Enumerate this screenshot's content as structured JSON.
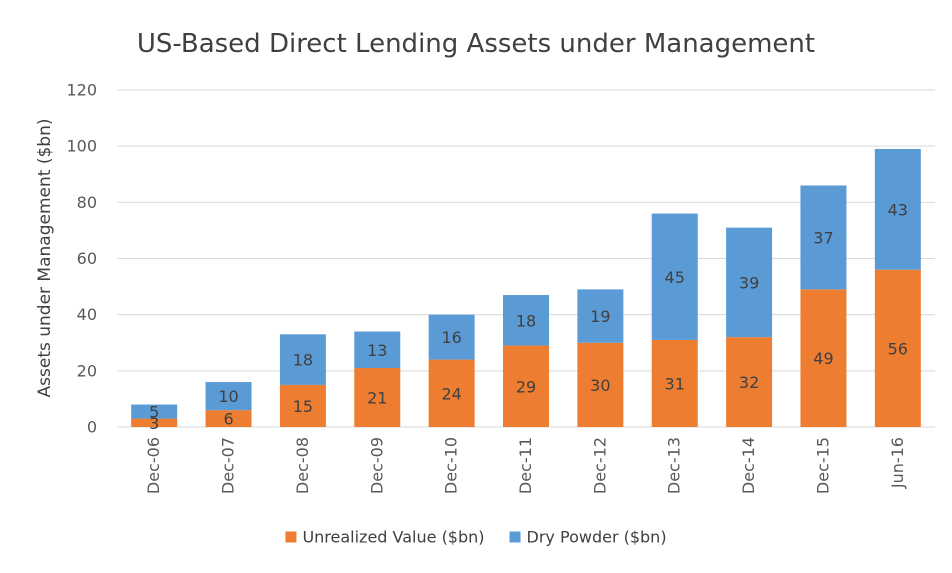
{
  "chart_data": {
    "type": "bar",
    "stacked": true,
    "title": "US-Based Direct Lending Assets under Management",
    "xlabel": "",
    "ylabel": "Assets under Management ($bn)",
    "ylim": [
      0,
      120
    ],
    "yticks": [
      0,
      20,
      40,
      60,
      80,
      100,
      120
    ],
    "grid": true,
    "legend_position": "bottom",
    "categories": [
      "Dec-06",
      "Dec-07",
      "Dec-08",
      "Dec-09",
      "Dec-10",
      "Dec-11",
      "Dec-12",
      "Dec-13",
      "Dec-14",
      "Dec-15",
      "Jun-16"
    ],
    "series": [
      {
        "name": "Unrealized Value ($bn)",
        "color": "#ED7D31",
        "values": [
          3,
          6,
          15,
          21,
          24,
          29,
          30,
          31,
          32,
          49,
          56
        ]
      },
      {
        "name": "Dry Powder ($bn)",
        "color": "#5B9BD5",
        "values": [
          5,
          10,
          18,
          13,
          16,
          18,
          19,
          45,
          39,
          37,
          43
        ]
      }
    ]
  }
}
